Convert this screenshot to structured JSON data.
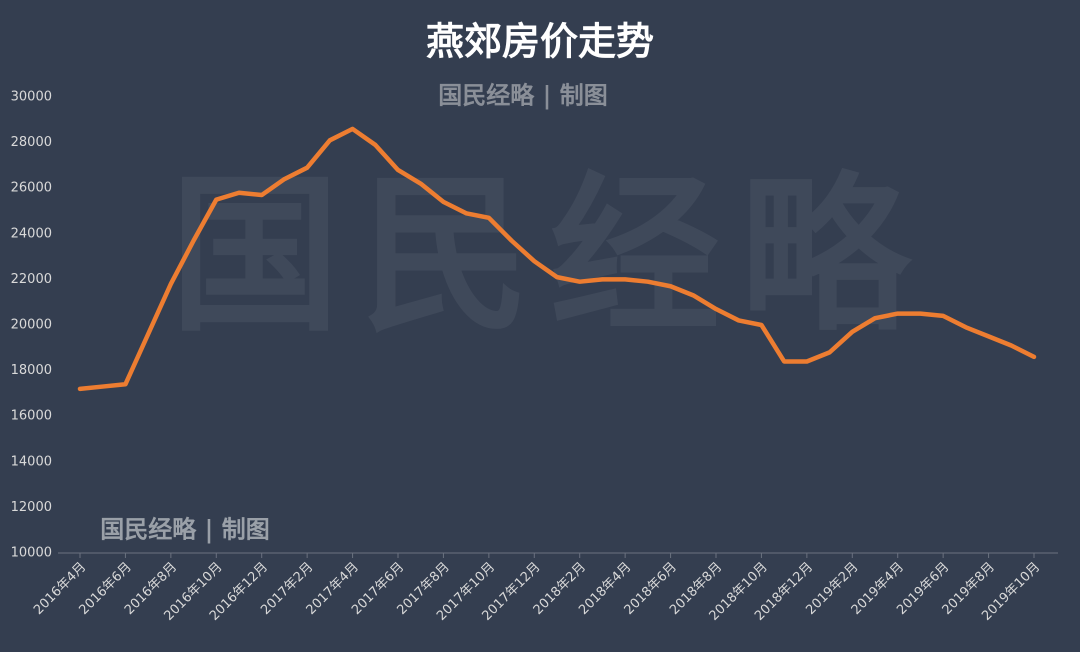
{
  "chart_data": {
    "type": "line",
    "title": "燕郊房价走势",
    "watermark": "国民经略",
    "annotations": [
      "国民经略 | 制图",
      "国民经略 | 制图"
    ],
    "categories": [
      "2016年4月",
      null,
      "2016年6月",
      null,
      "2016年8月",
      null,
      "2016年10月",
      null,
      "2016年12月",
      null,
      "2017年2月",
      null,
      "2017年4月",
      null,
      "2017年6月",
      null,
      "2017年8月",
      null,
      "2017年10月",
      null,
      "2017年12月",
      null,
      "2018年2月",
      null,
      "2018年4月",
      null,
      "2018年6月",
      null,
      "2018年8月",
      null,
      "2018年10月",
      null,
      "2018年12月",
      null,
      "2019年2月",
      null,
      "2019年4月",
      null,
      "2019年6月",
      null,
      "2019年8月",
      null,
      "2019年10月"
    ],
    "series": [
      {
        "name": "燕郊房价",
        "color": "#ed7d31",
        "values": [
          17200,
          17300,
          17400,
          19600,
          21800,
          23700,
          25500,
          25800,
          25700,
          26400,
          26900,
          28100,
          28600,
          27900,
          26800,
          26200,
          25400,
          24900,
          24700,
          23700,
          22800,
          22100,
          21900,
          22000,
          22000,
          21900,
          21700,
          21300,
          20700,
          20200,
          20000,
          18400,
          18400,
          18800,
          19700,
          20300,
          20500,
          20500,
          20400,
          19900,
          19500,
          19100,
          18600
        ]
      }
    ],
    "ylim": [
      10000,
      30000
    ],
    "yticks": [
      10000,
      12000,
      14000,
      16000,
      18000,
      20000,
      22000,
      24000,
      26000,
      28000,
      30000
    ],
    "grid": false
  }
}
